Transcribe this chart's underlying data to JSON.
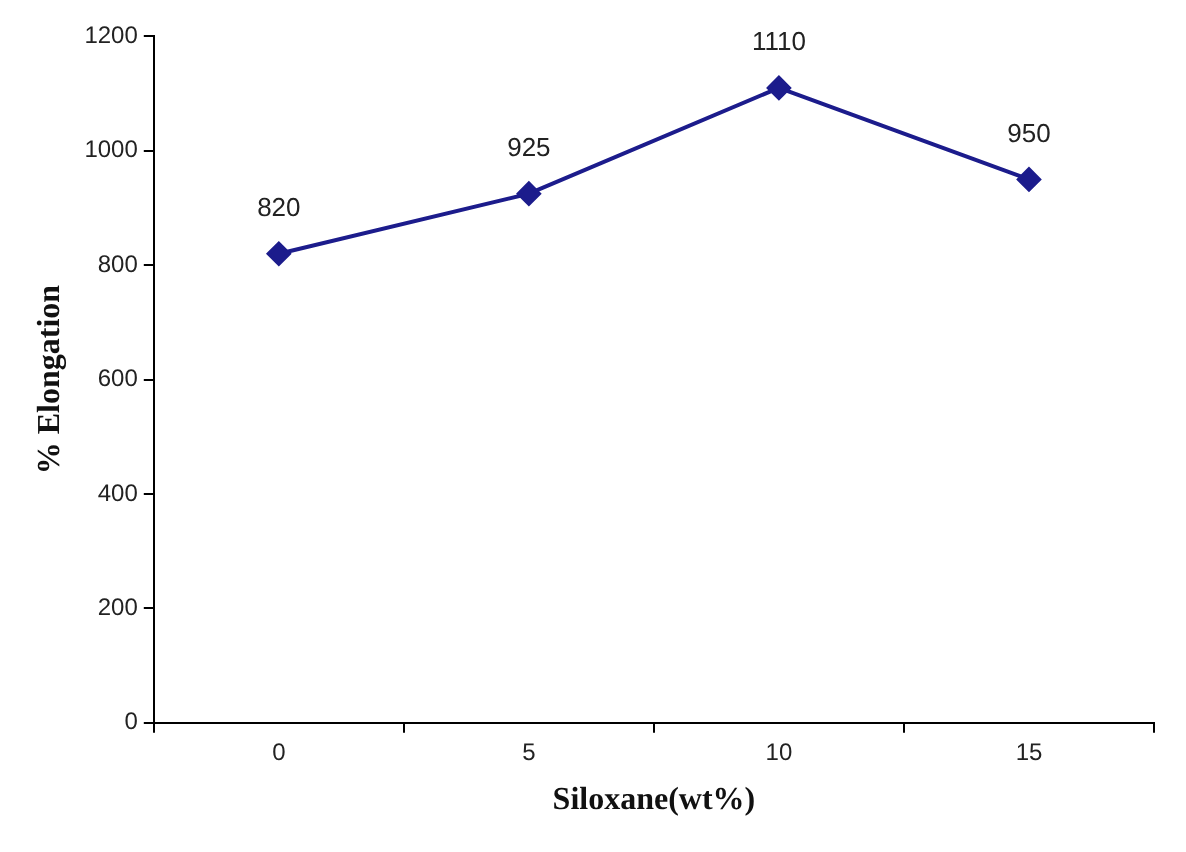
{
  "chart_data": {
    "type": "line",
    "xlabel": "Siloxane(wt%)",
    "ylabel": "% Elongation",
    "categories": [
      "0",
      "5",
      "10",
      "15"
    ],
    "series": [
      {
        "color": "#1c1c8c",
        "values": [
          820,
          925,
          1110,
          950
        ]
      }
    ],
    "ylim": [
      0,
      1200
    ],
    "yticks": [
      0,
      200,
      400,
      600,
      800,
      1000,
      1200
    ],
    "grid": false,
    "legend": false,
    "marker": "diamond",
    "line_style": "solid",
    "data_labels": true
  }
}
